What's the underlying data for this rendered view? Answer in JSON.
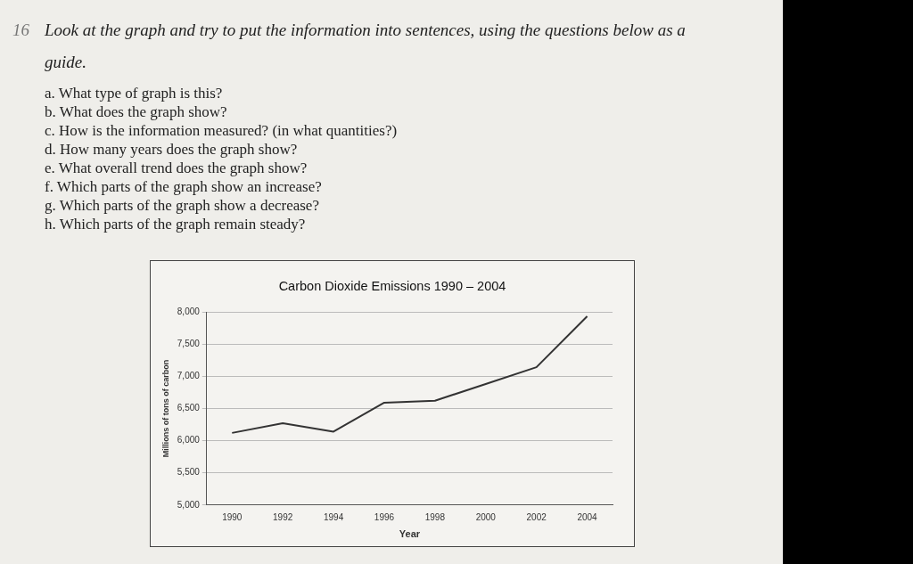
{
  "chart_data": {
    "type": "line",
    "title": "Carbon Dioxide Emissions 1990 – 2004",
    "xlabel": "Year",
    "ylabel": "Millions of tons of carbon",
    "categories": [
      "1990",
      "1992",
      "1994",
      "1996",
      "1998",
      "2000",
      "2002",
      "2004"
    ],
    "series": [
      {
        "color": "#333333",
        "values": [
          6120,
          6270,
          6140,
          6590,
          6620,
          6880,
          7140,
          7930
        ]
      }
    ],
    "ylim": [
      5000,
      8000
    ],
    "yticks": [
      {
        "value": 5000,
        "label": "5,000"
      },
      {
        "value": 5500,
        "label": "5,500"
      },
      {
        "value": 6000,
        "label": "6,000"
      },
      {
        "value": 6500,
        "label": "6,500"
      },
      {
        "value": 7000,
        "label": "7,000"
      },
      {
        "value": 7500,
        "label": "7,500"
      },
      {
        "value": 8000,
        "label": "8,000"
      }
    ],
    "grid": "y",
    "legend": false,
    "marker": "none",
    "line_style": "solid",
    "annotations": [
      "16",
      "Look at the graph and try to put the information into sentences, using the questions below as a guide.",
      "a. What type of graph is this?",
      "b. What does the graph show?",
      "c. How is the information measured? (in what quantities?)",
      "d. How many years does the graph show?",
      "e. What overall trend does the graph show?",
      "f. Which parts of the graph show an increase?",
      "g. Which parts of the graph show a decrease?",
      "h. Which parts of the graph remain steady?"
    ]
  }
}
